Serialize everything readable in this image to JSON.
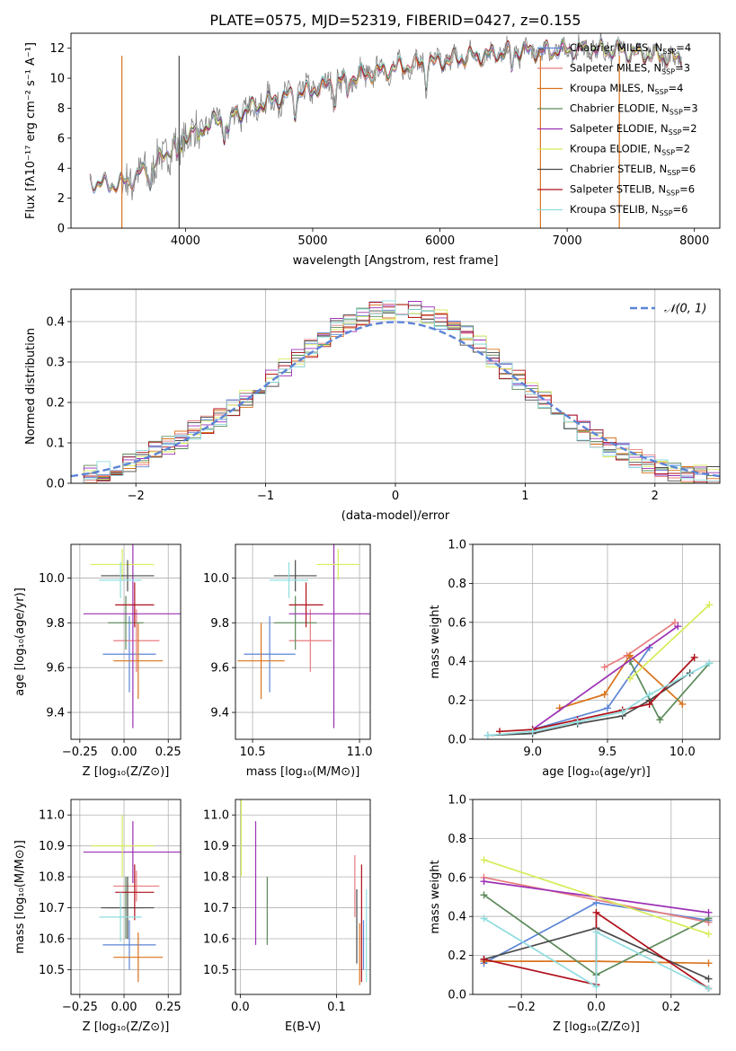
{
  "figure": {
    "title": "PLATE=0575, MJD=52319, FIBERID=0427, z=0.155"
  },
  "legend_labels": [
    {
      "name": "Chabrier MILES",
      "sub": "SSP",
      "n": "=4",
      "color": "#5b84d6"
    },
    {
      "name": "Salpeter MILES",
      "sub": "SSP",
      "n": "=3",
      "color": "#e87c7e"
    },
    {
      "name": "Kroupa MILES",
      "sub": "SSP",
      "n": "=4",
      "color": "#d9731c"
    },
    {
      "name": "Chabrier ELODIE",
      "sub": "SSP",
      "n": "=3",
      "color": "#5c8a5a"
    },
    {
      "name": "Salpeter ELODIE",
      "sub": "SSP",
      "n": "=2",
      "color": "#9b30b4"
    },
    {
      "name": "Kroupa ELODIE",
      "sub": "SSP",
      "n": "=2",
      "color": "#d8ec5a"
    },
    {
      "name": "Chabrier STELIB",
      "sub": "SSP",
      "n": "=6",
      "color": "#4a4a4a"
    },
    {
      "name": "Salpeter STELIB",
      "sub": "SSP",
      "n": "=6",
      "color": "#b0101a"
    },
    {
      "name": "Kroupa STELIB",
      "sub": "SSP",
      "n": "=6",
      "color": "#8fdde0"
    }
  ],
  "chart_data": [
    {
      "id": "spectrum",
      "type": "line",
      "xlabel": "wavelength [Angstrom, rest frame]",
      "ylabel": "Flux [fλ10⁻¹⁷ erg cm⁻² s⁻¹ A⁻¹]",
      "xlim": [
        3100,
        8200
      ],
      "ylim": [
        0,
        13
      ],
      "xticks": [
        4000,
        5000,
        6000,
        7000,
        8000
      ],
      "yticks": [
        0,
        2,
        4,
        6,
        8,
        10,
        12
      ],
      "data_color": "#808080",
      "continuum_x": [
        3250,
        3300,
        3400,
        3500,
        3600,
        3700,
        3800,
        3900,
        4000,
        4200,
        4400,
        4600,
        4800,
        5000,
        5200,
        5400,
        5600,
        5800,
        6000,
        6200,
        6400,
        6600,
        6800,
        7000,
        7200,
        7400,
        7600,
        7900
      ],
      "continuum_y": [
        3.3,
        3.0,
        2.9,
        3.0,
        3.4,
        3.9,
        4.6,
        5.5,
        6.3,
        7.0,
        7.6,
        8.3,
        8.8,
        9.2,
        9.8,
        10.2,
        10.6,
        10.9,
        11.1,
        11.4,
        11.6,
        11.8,
        11.8,
        11.9,
        11.9,
        11.9,
        11.6,
        11.3
      ]
    },
    {
      "id": "residuals",
      "type": "step",
      "xlabel": "(data-model)/error",
      "ylabel": "Normed distribution",
      "xlim": [
        -2.5,
        2.5
      ],
      "ylim": [
        0,
        0.48
      ],
      "xticks": [
        -2,
        -1,
        0,
        1,
        2
      ],
      "yticks": [
        0.0,
        0.1,
        0.2,
        0.3,
        0.4
      ],
      "bins_left": -2.5,
      "bin_width": 0.1,
      "gauss_label": "𝒩(0, 1)",
      "gauss_color": "#5b84d6",
      "hist": [
        0.02,
        0.025,
        0.03,
        0.04,
        0.05,
        0.06,
        0.08,
        0.095,
        0.11,
        0.13,
        0.145,
        0.16,
        0.185,
        0.21,
        0.235,
        0.26,
        0.285,
        0.31,
        0.335,
        0.36,
        0.385,
        0.4,
        0.415,
        0.425,
        0.43,
        0.432,
        0.43,
        0.42,
        0.405,
        0.385,
        0.365,
        0.34,
        0.31,
        0.28,
        0.255,
        0.23,
        0.205,
        0.18,
        0.155,
        0.13,
        0.11,
        0.09,
        0.075,
        0.06,
        0.05,
        0.04,
        0.03,
        0.025,
        0.02,
        0.018
      ]
    },
    {
      "id": "age-vs-z",
      "type": "errorbar",
      "xlabel": "Z [log₁₀(Z/Z⊙)]",
      "ylabel": "age  [log₁₀(age/yr)]",
      "xlim": [
        -0.3,
        0.32
      ],
      "ylim": [
        9.28,
        10.15
      ],
      "xticks": [
        -0.25,
        0,
        0.25
      ],
      "xticklabels": [
        "−0.25",
        "0.00",
        "0.25"
      ],
      "yticks": [
        9.4,
        9.6,
        9.8,
        10.0
      ],
      "yticklabels": [
        "9.4",
        "9.6",
        "9.8",
        "10.0"
      ],
      "points": [
        {
          "x": 0.03,
          "xerr": 0.15,
          "y": 9.66,
          "yerr": 0.17,
          "color": "#5b84d6"
        },
        {
          "x": 0.07,
          "xerr": 0.13,
          "y": 9.72,
          "yerr": 0.14,
          "color": "#e87c7e"
        },
        {
          "x": 0.08,
          "xerr": 0.14,
          "y": 9.63,
          "yerr": 0.17,
          "color": "#d9731c"
        },
        {
          "x": 0.01,
          "xerr": 0.1,
          "y": 9.8,
          "yerr": 0.12,
          "color": "#5c8a5a"
        },
        {
          "x": 0.05,
          "xerr": 0.28,
          "y": 9.84,
          "yerr": 0.51,
          "color": "#9b30b4"
        },
        {
          "x": -0.01,
          "xerr": 0.18,
          "y": 10.06,
          "yerr": 0.07,
          "color": "#d8ec5a"
        },
        {
          "x": 0.02,
          "xerr": 0.15,
          "y": 10.01,
          "yerr": 0.07,
          "color": "#4a4a4a"
        },
        {
          "x": 0.06,
          "xerr": 0.11,
          "y": 9.88,
          "yerr": 0.1,
          "color": "#b0101a"
        },
        {
          "x": -0.02,
          "xerr": 0.12,
          "y": 9.99,
          "yerr": 0.08,
          "color": "#8fdde0"
        }
      ]
    },
    {
      "id": "age-vs-mass",
      "type": "errorbar",
      "xlabel": "mass [log₁₀(M/M⊙)]",
      "ylabel": "",
      "xlim": [
        10.42,
        11.05
      ],
      "ylim": [
        9.28,
        10.15
      ],
      "xticks": [
        10.5,
        11.0
      ],
      "xticklabels": [
        "10.5",
        "11.0"
      ],
      "yticks": [
        9.4,
        9.6,
        9.8,
        10.0
      ],
      "yticklabels": [
        "9.4",
        "9.6",
        "9.8",
        "10.0"
      ],
      "points": [
        {
          "x": 10.58,
          "xerr": 0.12,
          "y": 9.66,
          "yerr": 0.17,
          "color": "#5b84d6"
        },
        {
          "x": 10.77,
          "xerr": 0.1,
          "y": 9.72,
          "yerr": 0.14,
          "color": "#e87c7e"
        },
        {
          "x": 10.54,
          "xerr": 0.11,
          "y": 9.63,
          "yerr": 0.17,
          "color": "#d9731c"
        },
        {
          "x": 10.7,
          "xerr": 0.1,
          "y": 9.8,
          "yerr": 0.12,
          "color": "#5c8a5a"
        },
        {
          "x": 10.88,
          "xerr": 0.21,
          "y": 9.84,
          "yerr": 0.51,
          "color": "#9b30b4"
        },
        {
          "x": 10.9,
          "xerr": 0.1,
          "y": 10.06,
          "yerr": 0.07,
          "color": "#d8ec5a"
        },
        {
          "x": 10.7,
          "xerr": 0.1,
          "y": 10.01,
          "yerr": 0.07,
          "color": "#4a4a4a"
        },
        {
          "x": 10.75,
          "xerr": 0.08,
          "y": 9.88,
          "yerr": 0.1,
          "color": "#b0101a"
        },
        {
          "x": 10.67,
          "xerr": 0.09,
          "y": 9.99,
          "yerr": 0.08,
          "color": "#8fdde0"
        }
      ]
    },
    {
      "id": "weights-vs-age",
      "type": "line",
      "xlabel": "age  [log₁₀(age/yr)]",
      "ylabel": "mass weight",
      "xlim": [
        8.6,
        10.25
      ],
      "ylim": [
        0,
        1
      ],
      "xticks": [
        9.0,
        9.5,
        10.0
      ],
      "xticklabels": [
        "9.0",
        "9.5",
        "10.0"
      ],
      "yticks": [
        0,
        0.2,
        0.4,
        0.6,
        0.8,
        1.0
      ],
      "yticklabels": [
        "0.0",
        "0.2",
        "0.4",
        "0.6",
        "0.8",
        "1.0"
      ],
      "series": [
        {
          "color": "#5b84d6",
          "x": [
            9.0,
            9.5,
            9.78
          ],
          "y": [
            0.05,
            0.16,
            0.47
          ]
        },
        {
          "color": "#e87c7e",
          "x": [
            9.48,
            9.63,
            9.95
          ],
          "y": [
            0.37,
            0.43,
            0.6
          ]
        },
        {
          "color": "#d9731c",
          "x": [
            9.18,
            9.48,
            9.65,
            10.0
          ],
          "y": [
            0.16,
            0.23,
            0.43,
            0.18
          ]
        },
        {
          "color": "#5c8a5a",
          "x": [
            9.65,
            9.85,
            10.18
          ],
          "y": [
            0.4,
            0.1,
            0.39
          ]
        },
        {
          "color": "#9b30b4",
          "x": [
            9.0,
            9.97
          ],
          "y": [
            0.05,
            0.58
          ]
        },
        {
          "color": "#d8ec5a",
          "x": [
            9.65,
            10.18
          ],
          "y": [
            0.31,
            0.69
          ]
        },
        {
          "color": "#4a4a4a",
          "x": [
            8.7,
            9.0,
            9.3,
            9.6,
            9.78,
            10.05
          ],
          "y": [
            0.02,
            0.03,
            0.08,
            0.12,
            0.2,
            0.34
          ]
        },
        {
          "color": "#b0101a",
          "x": [
            8.78,
            9.0,
            9.3,
            9.6,
            9.78,
            10.08
          ],
          "y": [
            0.04,
            0.05,
            0.1,
            0.15,
            0.18,
            0.42
          ]
        },
        {
          "color": "#8fdde0",
          "x": [
            8.7,
            9.0,
            9.3,
            9.6,
            9.78,
            10.18
          ],
          "y": [
            0.02,
            0.04,
            0.09,
            0.14,
            0.23,
            0.39
          ]
        }
      ]
    },
    {
      "id": "mass-vs-z",
      "type": "errorbar",
      "xlabel": "Z [log₁₀(Z/Z⊙)]",
      "ylabel": "mass [log₁₀(M/M⊙)]",
      "xlim": [
        -0.3,
        0.32
      ],
      "ylim": [
        10.42,
        11.05
      ],
      "xticks": [
        -0.25,
        0,
        0.25
      ],
      "xticklabels": [
        "−0.25",
        "0.00",
        "0.25"
      ],
      "yticks": [
        10.5,
        10.6,
        10.7,
        10.8,
        10.9,
        11.0
      ],
      "yticklabels": [
        "10.5",
        "10.6",
        "10.7",
        "10.8",
        "10.9",
        "11.0"
      ],
      "points": [
        {
          "x": 0.03,
          "xerr": 0.15,
          "y": 10.58,
          "yerr": 0.08,
          "color": "#5b84d6"
        },
        {
          "x": 0.07,
          "xerr": 0.13,
          "y": 10.77,
          "yerr": 0.05,
          "color": "#e87c7e"
        },
        {
          "x": 0.08,
          "xerr": 0.14,
          "y": 10.54,
          "yerr": 0.08,
          "color": "#d9731c"
        },
        {
          "x": 0.01,
          "xerr": 0.1,
          "y": 10.7,
          "yerr": 0.1,
          "color": "#5c8a5a"
        },
        {
          "x": 0.05,
          "xerr": 0.28,
          "y": 10.88,
          "yerr": 0.1,
          "color": "#9b30b4"
        },
        {
          "x": -0.01,
          "xerr": 0.18,
          "y": 10.9,
          "yerr": 0.1,
          "color": "#d8ec5a"
        },
        {
          "x": 0.02,
          "xerr": 0.15,
          "y": 10.7,
          "yerr": 0.1,
          "color": "#4a4a4a"
        },
        {
          "x": 0.06,
          "xerr": 0.11,
          "y": 10.75,
          "yerr": 0.09,
          "color": "#b0101a"
        },
        {
          "x": -0.02,
          "xerr": 0.12,
          "y": 10.67,
          "yerr": 0.08,
          "color": "#8fdde0"
        }
      ]
    },
    {
      "id": "mass-vs-ebv",
      "type": "errorbar",
      "xlabel": "E(B-V)",
      "ylabel": "",
      "xlim": [
        -0.005,
        0.135
      ],
      "ylim": [
        10.42,
        11.05
      ],
      "xticks": [
        0.0,
        0.1
      ],
      "xticklabels": [
        "0.0",
        "0.1"
      ],
      "yticks": [
        10.5,
        10.6,
        10.7,
        10.8,
        10.9,
        11.0
      ],
      "yticklabels": [
        "10.5",
        "10.6",
        "10.7",
        "10.8",
        "10.9",
        "11.0"
      ],
      "points": [
        {
          "x": 0.128,
          "xerr": 0,
          "y": 10.58,
          "yerr": 0.08,
          "color": "#5b84d6"
        },
        {
          "x": 0.119,
          "xerr": 0,
          "y": 10.77,
          "yerr": 0.1,
          "color": "#e87c7e"
        },
        {
          "x": 0.124,
          "xerr": 0,
          "y": 10.55,
          "yerr": 0.1,
          "color": "#d9731c"
        },
        {
          "x": 0.028,
          "xerr": 0,
          "y": 10.69,
          "yerr": 0.11,
          "color": "#5c8a5a"
        },
        {
          "x": 0.016,
          "xerr": 0,
          "y": 10.78,
          "yerr": 0.2,
          "color": "#9b30b4"
        },
        {
          "x": 0.001,
          "xerr": 0,
          "y": 10.95,
          "yerr": 0.15,
          "color": "#d8ec5a"
        },
        {
          "x": 0.121,
          "xerr": 0,
          "y": 10.64,
          "yerr": 0.12,
          "color": "#4a4a4a"
        },
        {
          "x": 0.126,
          "xerr": 0,
          "y": 10.65,
          "yerr": 0.19,
          "color": "#b0101a"
        },
        {
          "x": 0.131,
          "xerr": 0,
          "y": 10.61,
          "yerr": 0.15,
          "color": "#8fdde0"
        }
      ]
    },
    {
      "id": "weights-vs-z",
      "type": "line",
      "xlabel": "Z [log₁₀(Z/Z⊙)]",
      "ylabel": "mass weight",
      "xlim": [
        -0.33,
        0.33
      ],
      "ylim": [
        0,
        1
      ],
      "xticks": [
        -0.2,
        0.0,
        0.2
      ],
      "xticklabels": [
        "−0.2",
        "0.0",
        "0.2"
      ],
      "yticks": [
        0,
        0.2,
        0.4,
        0.6,
        0.8,
        1.0
      ],
      "yticklabels": [
        "0.0",
        "0.2",
        "0.4",
        "0.6",
        "0.8",
        "1.0"
      ],
      "series": [
        {
          "color": "#5b84d6",
          "x": [
            -0.3,
            0.0,
            0.3
          ],
          "y": [
            0.16,
            0.47,
            0.38
          ]
        },
        {
          "color": "#e87c7e",
          "x": [
            -0.3,
            0.3
          ],
          "y": [
            0.6,
            0.37
          ]
        },
        {
          "color": "#d9731c",
          "x": [
            -0.3,
            0.0,
            0.3
          ],
          "y": [
            0.17,
            0.17,
            0.16
          ]
        },
        {
          "color": "#5c8a5a",
          "x": [
            -0.3,
            0.0,
            0.3
          ],
          "y": [
            0.51,
            0.1,
            0.39
          ]
        },
        {
          "color": "#9b30b4",
          "x": [
            -0.3,
            0.3
          ],
          "y": [
            0.58,
            0.42
          ]
        },
        {
          "color": "#d8ec5a",
          "x": [
            -0.3,
            0.3
          ],
          "y": [
            0.69,
            0.31
          ]
        },
        {
          "color": "#4a4a4a",
          "x": [
            -0.3,
            0.0,
            0.3
          ],
          "y": [
            0.18,
            0.34,
            0.08
          ]
        },
        {
          "color": "#b0101a",
          "x": [
            -0.3,
            0.0,
            0.0,
            0.3
          ],
          "y": [
            0.18,
            0.05,
            0.42,
            0.03
          ]
        },
        {
          "color": "#8fdde0",
          "x": [
            -0.3,
            0.0,
            0.0,
            0.3
          ],
          "y": [
            0.39,
            0.04,
            0.32,
            0.03
          ]
        }
      ]
    }
  ]
}
